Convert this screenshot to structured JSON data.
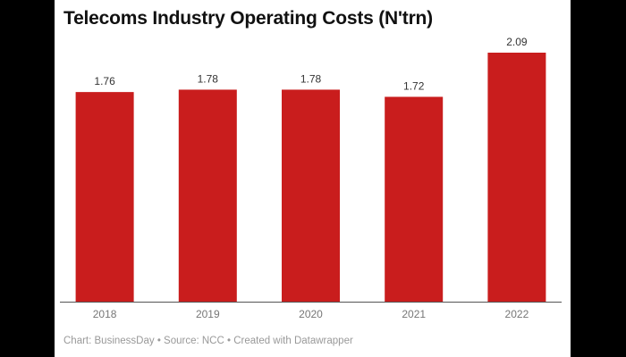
{
  "chart_data": {
    "type": "bar",
    "title": "Telecoms Industry Operating Costs (N'trn)",
    "categories": [
      "2018",
      "2019",
      "2020",
      "2021",
      "2022"
    ],
    "values": [
      1.76,
      1.78,
      1.78,
      1.72,
      2.09
    ],
    "value_labels": [
      "1.76",
      "1.78",
      "1.78",
      "1.72",
      "2.09"
    ],
    "xlabel": "",
    "ylabel": "",
    "ylim": [
      0,
      2.09
    ],
    "grid": false,
    "bar_color": "#c91d1d",
    "footer": "Chart: BusinessDay • Source: NCC • Created with Datawrapper"
  }
}
